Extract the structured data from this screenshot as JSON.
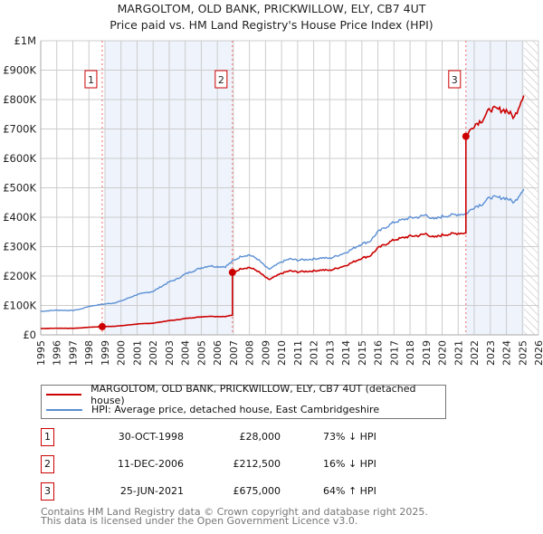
{
  "title": "MARGOLTOM, OLD BANK, PRICKWILLOW, ELY, CB7 4UT",
  "subtitle": "Price paid vs. HM Land Registry's House Price Index (HPI)",
  "colors": {
    "property": "#cc0000",
    "hpi": "#5b8fd4",
    "band": "#eef3fc"
  },
  "chart_data": {
    "type": "line",
    "xlim": [
      1995,
      2026
    ],
    "ylim": [
      0,
      1000000
    ],
    "y_ticks": [
      0,
      100000,
      200000,
      300000,
      400000,
      500000,
      600000,
      700000,
      800000,
      900000,
      1000000
    ],
    "y_tick_labels": [
      "£0",
      "£100K",
      "£200K",
      "£300K",
      "£400K",
      "£500K",
      "£600K",
      "£700K",
      "£800K",
      "£900K",
      "£1M"
    ],
    "x_ticks": [
      "1995",
      "1996",
      "1997",
      "1998",
      "1999",
      "2000",
      "2001",
      "2002",
      "2003",
      "2004",
      "2005",
      "2006",
      "2007",
      "2008",
      "2009",
      "2010",
      "2011",
      "2012",
      "2013",
      "2014",
      "2015",
      "2016",
      "2017",
      "2018",
      "2019",
      "2020",
      "2021",
      "2022",
      "2023",
      "2024",
      "2025",
      "2026"
    ],
    "grid": true,
    "legend_placement": "below",
    "data_end_year": 2025.1,
    "series": [
      {
        "name": "HPI: Average price, detached house, East Cambridgeshire",
        "x": [
          1995,
          1996,
          1997,
          1997.5,
          1998,
          1998.83,
          1999.5,
          2000,
          2001,
          2002,
          2003,
          2003.5,
          2004,
          2005,
          2005.5,
          2006,
          2006.5,
          2007,
          2007.5,
          2008,
          2008.5,
          2009.2,
          2010,
          2010.5,
          2011,
          2012,
          2012.5,
          2013,
          2014,
          2015,
          2015.5,
          2016,
          2017,
          2018,
          2018.5,
          2019,
          2019.5,
          2020,
          2021,
          2021.48,
          2022,
          2022.5,
          2023,
          2024,
          2024.5,
          2025,
          2025.1
        ],
        "y": [
          80000,
          84000,
          83000,
          88000,
          97000,
          104000,
          108000,
          115000,
          137000,
          148000,
          180000,
          190000,
          207000,
          228000,
          235000,
          232000,
          232000,
          252000,
          268000,
          272000,
          258000,
          222000,
          248000,
          258000,
          254000,
          258000,
          262000,
          260000,
          280000,
          310000,
          318000,
          350000,
          383000,
          398000,
          400000,
          408000,
          392000,
          403000,
          410000,
          411000,
          435000,
          445000,
          468000,
          465000,
          450000,
          492000,
          500000
        ]
      },
      {
        "name": "MARGOLTOM, OLD BANK, PRICKWILLOW, ELY, CB7 4UT (detached house)",
        "ratios": [
          [
            1995,
            0.2692
          ],
          [
            1998.83,
            0.2692
          ],
          [
            2006.94,
            0.843
          ],
          [
            2021.48,
            1.642
          ]
        ]
      }
    ],
    "sales": [
      {
        "id": "1",
        "x": 1998.83,
        "price": 28000
      },
      {
        "id": "2",
        "x": 2006.94,
        "price": 212500
      },
      {
        "id": "3",
        "x": 2021.48,
        "price": 675000
      }
    ]
  },
  "legend": [
    "MARGOLTOM, OLD BANK, PRICKWILLOW, ELY, CB7 4UT (detached house)",
    "HPI: Average price, detached house, East Cambridgeshire"
  ],
  "transactions": [
    {
      "num": "1",
      "date": "30-OCT-1998",
      "price": "£28,000",
      "hpi": "73% ↓ HPI"
    },
    {
      "num": "2",
      "date": "11-DEC-2006",
      "price": "£212,500",
      "hpi": "16% ↓ HPI"
    },
    {
      "num": "3",
      "date": "25-JUN-2021",
      "price": "£675,000",
      "hpi": "64% ↑ HPI"
    }
  ],
  "footer": [
    "Contains HM Land Registry data © Crown copyright and database right 2025.",
    "This data is licensed under the Open Government Licence v3.0."
  ]
}
